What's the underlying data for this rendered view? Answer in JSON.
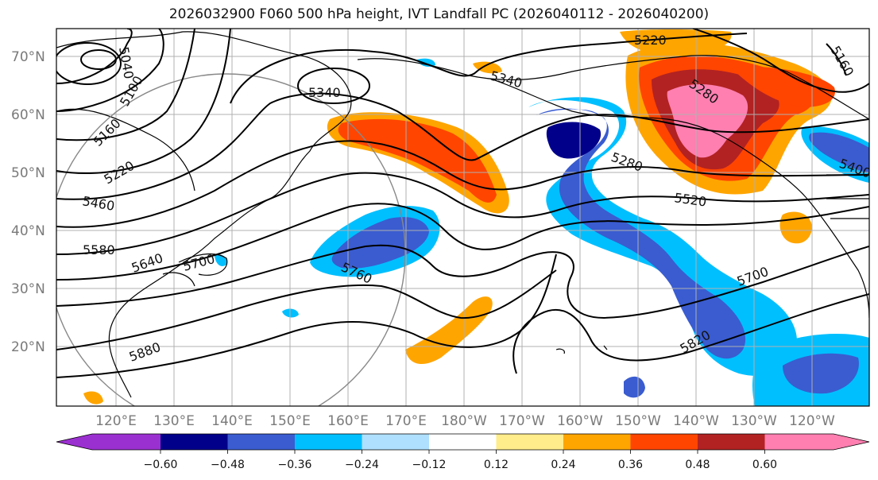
{
  "title": "2026032900 F060 500 hPa height, IVT Landfall PC (2026040112 - 2026040200)",
  "lat_labels": [
    "70°N",
    "60°N",
    "50°N",
    "40°N",
    "30°N",
    "20°N"
  ],
  "lon_labels": [
    "120°E",
    "130°E",
    "140°E",
    "150°E",
    "160°E",
    "170°E",
    "180°W",
    "170°W",
    "160°W",
    "150°W",
    "140°W",
    "130°W",
    "120°W"
  ],
  "contour_labels": [
    "5220",
    "5340",
    "5040",
    "5100",
    "5160",
    "5220",
    "5460",
    "5580",
    "5640",
    "5700",
    "5760",
    "5880",
    "5340",
    "5280",
    "5280",
    "5520",
    "5400",
    "5700",
    "5820",
    "5160"
  ],
  "colorbar": {
    "colors": [
      "#9b30d0",
      "#00008b",
      "#3a5cd0",
      "#00bfff",
      "#b0e0ff",
      "#ffffff",
      "#ffec8a",
      "#ffa500",
      "#ff4500",
      "#b22222",
      "#ff7fb0",
      "#ff7fb0"
    ],
    "ticks": [
      "−0.60",
      "−0.48",
      "−0.36",
      "−0.24",
      "−0.12",
      "0.12",
      "0.24",
      "0.36",
      "0.48",
      "0.60"
    ]
  },
  "palette": {
    "land": "#000000",
    "grid": "#b0b0b0",
    "contour": "#000000",
    "circle": "#888888"
  }
}
